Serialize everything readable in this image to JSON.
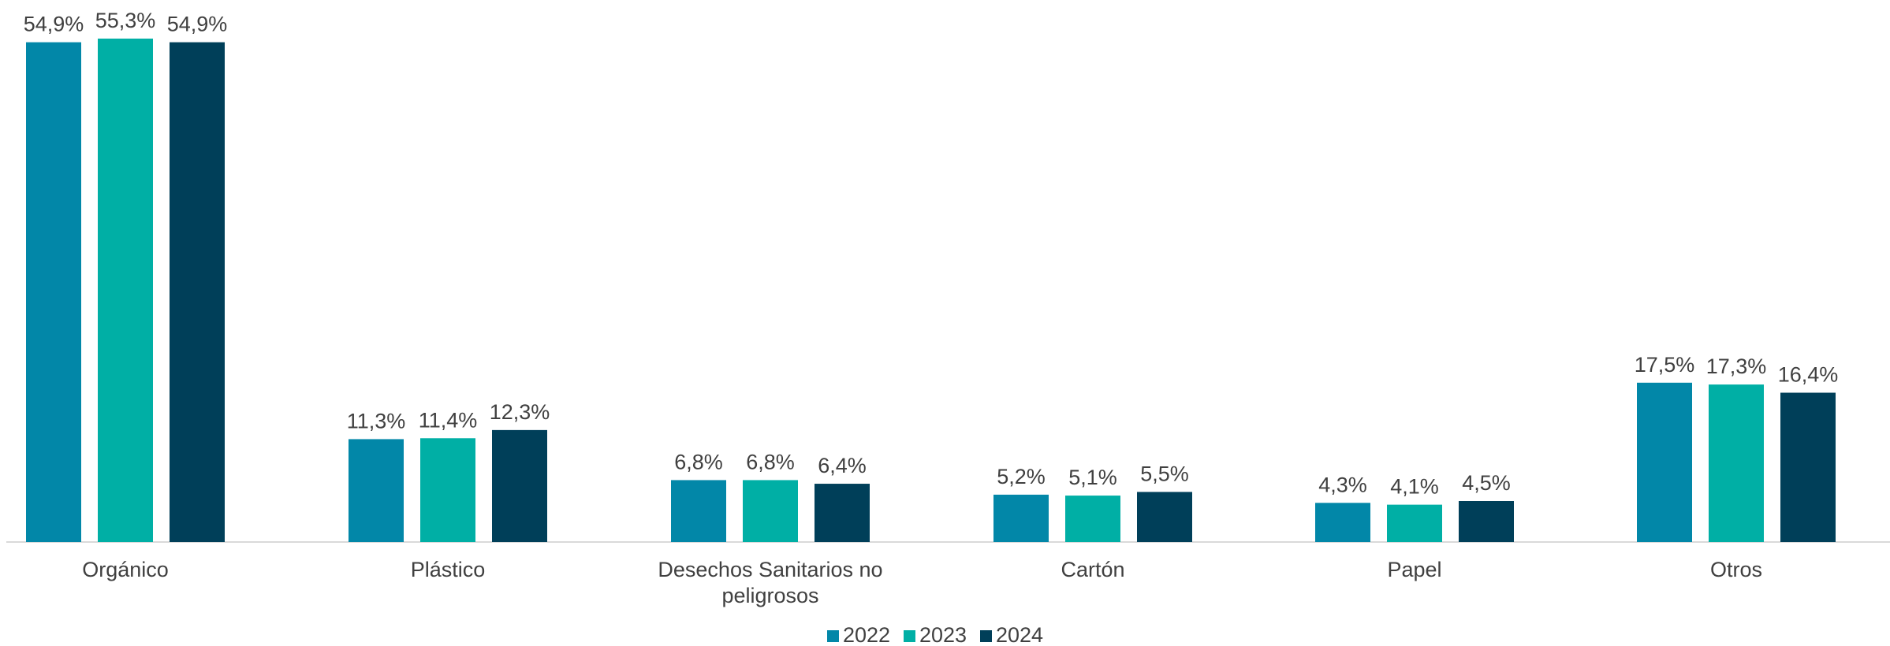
{
  "chart_data": {
    "type": "bar",
    "categories": [
      [
        "Orgánico"
      ],
      [
        "Plástico"
      ],
      [
        "Desechos Sanitarios no",
        "peligrosos"
      ],
      [
        "Cartón"
      ],
      [
        "Papel"
      ],
      [
        "Otros"
      ]
    ],
    "series": [
      {
        "name": "2022",
        "color": "#0287A8",
        "values": [
          54.9,
          11.3,
          6.8,
          5.2,
          4.3,
          17.5
        ],
        "labels": [
          "54,9%",
          "11,3%",
          "6,8%",
          "5,2%",
          "4,3%",
          "17,5%"
        ]
      },
      {
        "name": "2023",
        "color": "#00AFA5",
        "values": [
          55.3,
          11.4,
          6.8,
          5.1,
          4.1,
          17.3
        ],
        "labels": [
          "55,3%",
          "11,4%",
          "6,8%",
          "5,1%",
          "4,1%",
          "17,3%"
        ]
      },
      {
        "name": "2024",
        "color": "#003F59",
        "values": [
          54.9,
          12.3,
          6.4,
          5.5,
          4.5,
          16.4
        ],
        "labels": [
          "54,9%",
          "12,3%",
          "6,4%",
          "5,5%",
          "4,5%",
          "16,4%"
        ]
      }
    ],
    "title": "",
    "xlabel": "",
    "ylabel": "",
    "ylim": [
      0,
      55.3
    ],
    "grid": false,
    "legend": "bottom-center"
  }
}
